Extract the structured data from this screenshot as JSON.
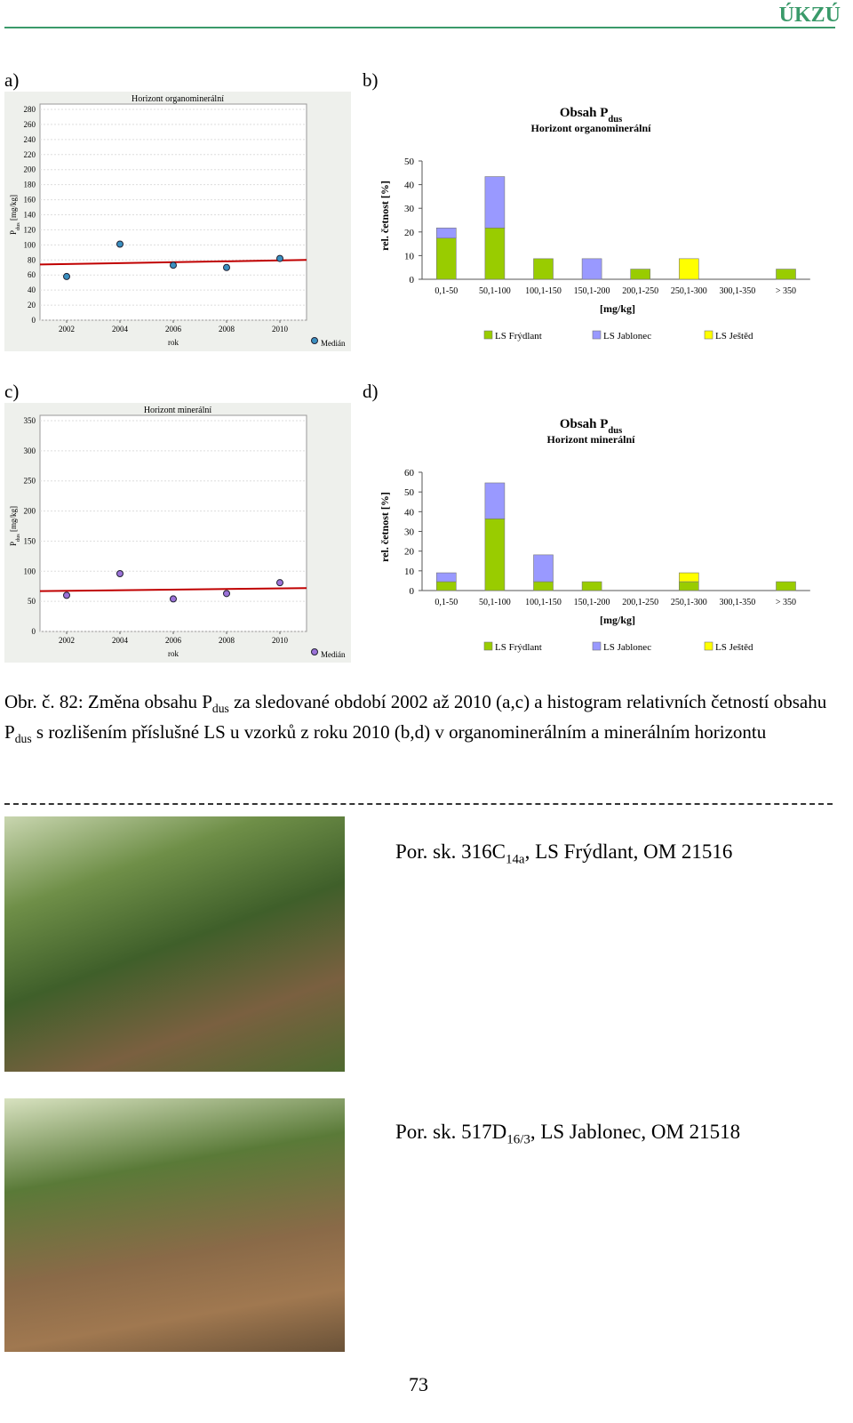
{
  "header": {
    "title": "ÚKZÚ"
  },
  "panels": [
    "a)",
    "b)",
    "c)",
    "d)"
  ],
  "chart_data": [
    {
      "type": "scatter",
      "title": "Horizont organominerální",
      "ylabel": [
        "P",
        "dus",
        " [mg/kg]"
      ],
      "xlabel": "rok",
      "legend": "Medián",
      "color": "#3a8fc0",
      "x": [
        2002,
        2004,
        2006,
        2008,
        2010
      ],
      "values": [
        58,
        101,
        73,
        70,
        82
      ],
      "xlim": [
        2001,
        2011
      ],
      "xticks": [
        2002,
        2004,
        2006,
        2008,
        2010
      ],
      "ylim": [
        0,
        280
      ],
      "yticks": [
        0,
        20,
        40,
        60,
        80,
        100,
        120,
        140,
        160,
        180,
        200,
        220,
        240,
        260,
        280
      ],
      "trend": {
        "color": "#c00000",
        "x": [
          2001,
          2011
        ],
        "values": [
          74,
          80
        ]
      },
      "grid": true
    },
    {
      "type": "stackedbar",
      "title": [
        "Obsah P",
        "dus"
      ],
      "subtitle": "Horizont  organominerální",
      "ylabel": "rel. četnost [%]",
      "xlabel": "[mg/kg]",
      "categories": [
        "0,1-50",
        "50,1-100",
        "100,1-150",
        "150,1-200",
        "200,1-250",
        "250,1-300",
        "300,1-350",
        "> 350"
      ],
      "series": [
        {
          "name": "LS Frýdlant",
          "color": "#99cc00",
          "values": [
            17.4,
            21.7,
            8.7,
            0,
            4.3,
            0,
            0,
            4.3
          ]
        },
        {
          "name": "LS Jablonec",
          "color": "#9999ff",
          "values": [
            4.3,
            21.7,
            0,
            8.7,
            0,
            0,
            0,
            0
          ]
        },
        {
          "name": "LS Ještěd",
          "color": "#ffff00",
          "values": [
            0,
            0,
            0,
            0,
            0,
            8.7,
            0,
            0
          ]
        }
      ],
      "ylim": [
        0,
        50
      ],
      "yticks": [
        0,
        10,
        20,
        30,
        40,
        50
      ]
    },
    {
      "type": "scatter",
      "title": "Horizont minerální",
      "ylabel": [
        "P",
        "dus",
        " [mg/kg]"
      ],
      "xlabel": "rok",
      "legend": "Medián",
      "color": "#9b72d8",
      "x": [
        2002,
        2004,
        2006,
        2008,
        2010
      ],
      "values": [
        60,
        96,
        54,
        63,
        81
      ],
      "xlim": [
        2001,
        2011
      ],
      "xticks": [
        2002,
        2004,
        2006,
        2008,
        2010
      ],
      "ylim": [
        0,
        350
      ],
      "yticks": [
        0,
        50,
        100,
        150,
        200,
        250,
        300,
        350
      ],
      "trend": {
        "color": "#c00000",
        "x": [
          2001,
          2011
        ],
        "values": [
          67,
          72
        ]
      },
      "grid": true
    },
    {
      "type": "stackedbar",
      "title": [
        "Obsah P",
        "dus"
      ],
      "subtitle": "Horizont  minerální",
      "ylabel": "rel. četnost [%]",
      "xlabel": "[mg/kg]",
      "categories": [
        "0,1-50",
        "50,1-100",
        "100,1-150",
        "150,1-200",
        "200,1-250",
        "250,1-300",
        "300,1-350",
        "> 350"
      ],
      "series": [
        {
          "name": "LS Frýdlant",
          "color": "#99cc00",
          "values": [
            4.5,
            36.4,
            4.5,
            4.5,
            0,
            4.5,
            0,
            4.5
          ]
        },
        {
          "name": "LS Jablonec",
          "color": "#9999ff",
          "values": [
            4.5,
            18.2,
            13.6,
            0,
            0,
            0,
            0,
            0
          ]
        },
        {
          "name": "LS Ještěd",
          "color": "#ffff00",
          "values": [
            0,
            0,
            0,
            0,
            0,
            4.5,
            0,
            0
          ]
        }
      ],
      "ylim": [
        0,
        60
      ],
      "yticks": [
        0,
        10,
        20,
        30,
        40,
        50,
        60
      ]
    }
  ],
  "caption": [
    "Obr. č. 82: Změna obsahu P",
    "dus",
    " za sledované období 2002 až 2010 (a,c) a histogram relativních četností obsahu P",
    "dus",
    " s rozlišením příslušné LS u vzorků z roku 2010 (b,d) v organominerálním a minerálním horizontu"
  ],
  "photos": [
    {
      "caption": [
        "Por. sk. 316C",
        "14a",
        ", LS Frýdlant, OM 21516"
      ]
    },
    {
      "caption": [
        "Por. sk. 517D",
        "16/3",
        ", LS Jablonec, OM 21518"
      ]
    }
  ],
  "page_number": "73"
}
